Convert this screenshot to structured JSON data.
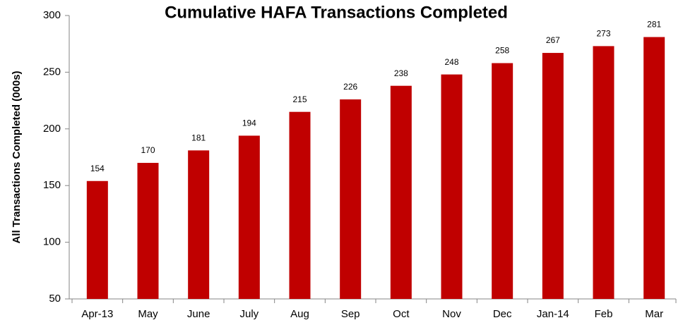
{
  "chart_data": {
    "type": "bar",
    "title": "Cumulative HAFA Transactions Completed",
    "y_label": "All Transactions Completed (000s)",
    "categories": [
      "Apr-13",
      "May",
      "June",
      "July",
      "Aug",
      "Sep",
      "Oct",
      "Nov",
      "Dec",
      "Jan-14",
      "Feb",
      "Mar"
    ],
    "values": [
      154,
      170,
      181,
      194,
      215,
      226,
      238,
      248,
      258,
      267,
      273,
      281
    ],
    "color": "#c00000",
    "ylim": [
      50,
      300
    ],
    "yticks": [
      50,
      100,
      150,
      200,
      250,
      300
    ],
    "grid": false
  }
}
